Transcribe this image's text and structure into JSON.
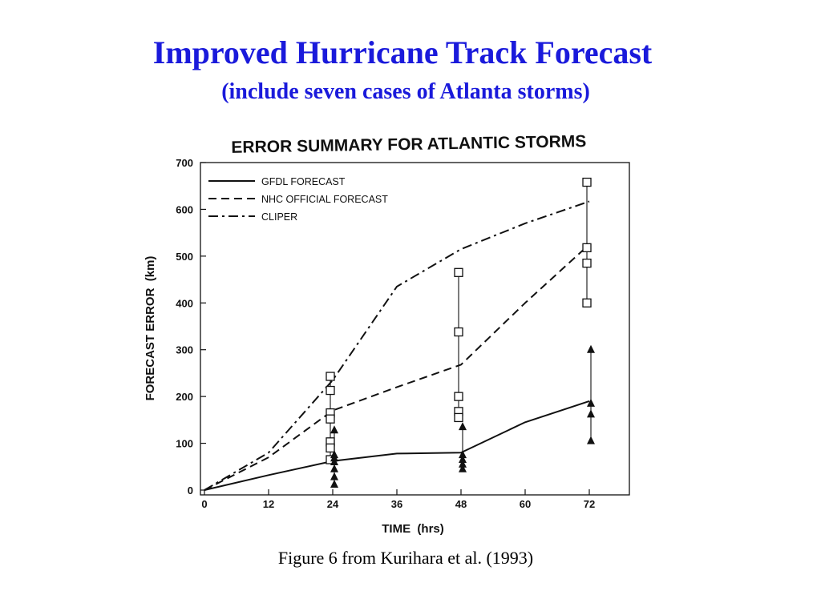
{
  "slide": {
    "title": "Improved Hurricane Track Forecast",
    "subtitle": "(include seven cases of Atlanta storms)",
    "caption": "Figure 6 from Kurihara et al. (1993)"
  },
  "chart_data": {
    "type": "line",
    "title": "ERROR SUMMARY FOR ATLANTIC STORMS",
    "xlabel": "TIME  (hrs)",
    "ylabel": "FORECAST ERROR  (km)",
    "xlim": [
      0,
      78
    ],
    "ylim": [
      0,
      700
    ],
    "xticks": [
      0,
      12,
      24,
      36,
      48,
      60,
      72
    ],
    "yticks": [
      0,
      100,
      200,
      300,
      400,
      500,
      600,
      700
    ],
    "grid": false,
    "legend_position": "top-left",
    "series": [
      {
        "name": "GFDL FORECAST",
        "style": "solid",
        "color": "#111111",
        "x": [
          0,
          12,
          24,
          36,
          48,
          60,
          72
        ],
        "y": [
          0,
          32,
          62,
          78,
          80,
          145,
          190
        ]
      },
      {
        "name": "NHC OFFICIAL FORECAST",
        "style": "dashed",
        "color": "#111111",
        "x": [
          0,
          12,
          24,
          36,
          48,
          60,
          72
        ],
        "y": [
          0,
          70,
          170,
          220,
          268,
          400,
          525
        ]
      },
      {
        "name": "CLIPER",
        "style": "dash-dot",
        "color": "#111111",
        "x": [
          0,
          12,
          24,
          36,
          48,
          60,
          72
        ],
        "y": [
          0,
          80,
          235,
          435,
          515,
          570,
          617
        ]
      }
    ],
    "cases": [
      {
        "time": 24,
        "marker": "square",
        "values": [
          243,
          213,
          165,
          152,
          103,
          90,
          65
        ]
      },
      {
        "time": 24,
        "marker": "triangle",
        "values": [
          128,
          75,
          68,
          60,
          45,
          28,
          12
        ]
      },
      {
        "time": 48,
        "marker": "square",
        "values": [
          465,
          338,
          200,
          168,
          155
        ]
      },
      {
        "time": 48,
        "marker": "triangle",
        "values": [
          135,
          75,
          65,
          55,
          45
        ]
      },
      {
        "time": 72,
        "marker": "square",
        "values": [
          658,
          518,
          485,
          400
        ]
      },
      {
        "time": 72,
        "marker": "triangle",
        "values": [
          300,
          185,
          162,
          105
        ]
      }
    ]
  }
}
